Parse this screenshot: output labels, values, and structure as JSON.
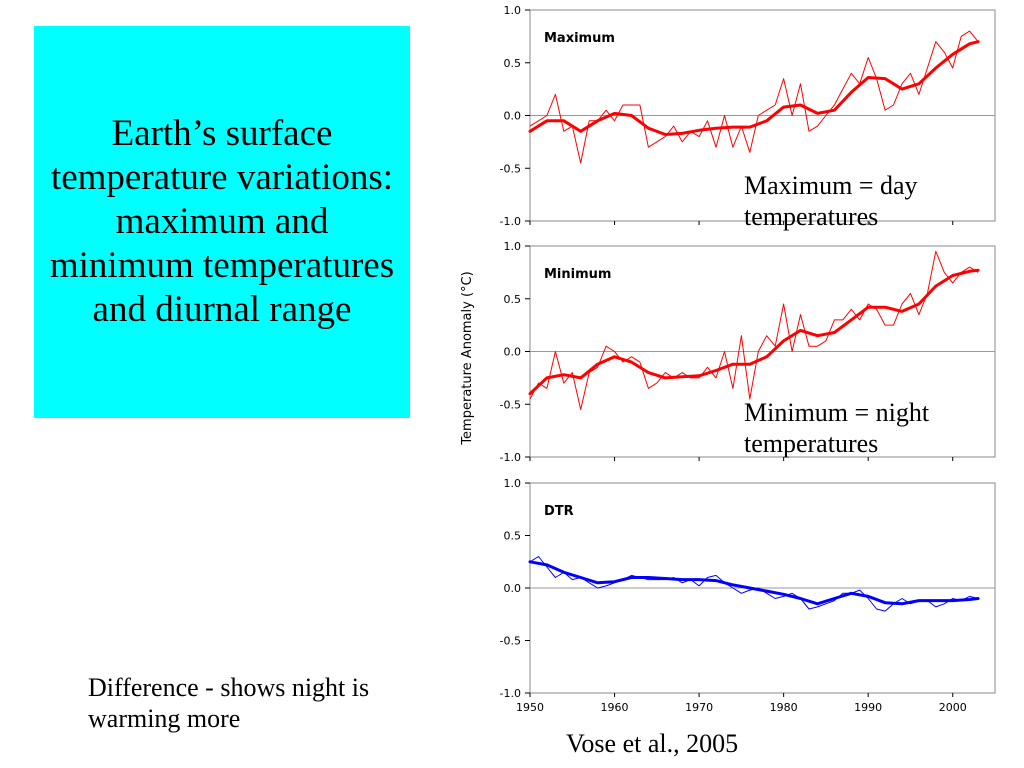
{
  "slide": {
    "title": "Earth’s surface temperature variations: maximum and minimum temperatures and diurnal range",
    "note_max": "Maximum = day temperatures",
    "note_min": "Minimum = night temperatures",
    "note_diff": "Difference - shows night is warming more",
    "citation": "Vose et al., 2005",
    "title_bg": "#00FFFF"
  },
  "chart_data": {
    "type": "line",
    "ylabel": "Temperature Anomaly (°C)",
    "xlim": [
      1950,
      2005
    ],
    "ylim": [
      -1.0,
      1.0
    ],
    "x_ticks": [
      1950,
      1960,
      1970,
      1980,
      1990,
      2000
    ],
    "y_ticks": [
      1.0,
      0.5,
      0.0,
      -0.5,
      -1.0
    ],
    "y_tick_labels": [
      "1.0",
      "0.5",
      "0.0",
      "-0.5",
      "-1.0"
    ],
    "panels": [
      {
        "title": "Maximum",
        "color": "#FF0000",
        "annual": {
          "x": [
            1950,
            1951,
            1952,
            1953,
            1954,
            1955,
            1956,
            1957,
            1958,
            1959,
            1960,
            1961,
            1962,
            1963,
            1964,
            1965,
            1966,
            1967,
            1968,
            1969,
            1970,
            1971,
            1972,
            1973,
            1974,
            1975,
            1976,
            1977,
            1978,
            1979,
            1980,
            1981,
            1982,
            1983,
            1984,
            1985,
            1986,
            1987,
            1988,
            1989,
            1990,
            1991,
            1992,
            1993,
            1994,
            1995,
            1996,
            1997,
            1998,
            1999,
            2000,
            2001,
            2002,
            2003
          ],
          "y": [
            -0.1,
            -0.05,
            0.0,
            0.2,
            -0.15,
            -0.1,
            -0.45,
            -0.05,
            -0.05,
            0.05,
            -0.05,
            0.1,
            0.1,
            0.1,
            -0.3,
            -0.25,
            -0.2,
            -0.1,
            -0.25,
            -0.15,
            -0.2,
            -0.05,
            -0.3,
            0.0,
            -0.3,
            -0.1,
            -0.35,
            0.0,
            0.05,
            0.1,
            0.35,
            0.0,
            0.3,
            -0.15,
            -0.1,
            0.0,
            0.1,
            0.25,
            0.4,
            0.3,
            0.55,
            0.35,
            0.05,
            0.1,
            0.3,
            0.4,
            0.2,
            0.45,
            0.7,
            0.6,
            0.45,
            0.75,
            0.8,
            0.7
          ]
        },
        "smooth": {
          "x": [
            1950,
            1952,
            1954,
            1956,
            1958,
            1960,
            1962,
            1964,
            1966,
            1968,
            1970,
            1972,
            1974,
            1976,
            1978,
            1980,
            1982,
            1984,
            1986,
            1988,
            1990,
            1992,
            1994,
            1996,
            1998,
            2000,
            2002,
            2003
          ],
          "y": [
            -0.15,
            -0.05,
            -0.05,
            -0.15,
            -0.05,
            0.02,
            0.0,
            -0.12,
            -0.18,
            -0.17,
            -0.14,
            -0.12,
            -0.11,
            -0.11,
            -0.05,
            0.08,
            0.1,
            0.02,
            0.05,
            0.22,
            0.36,
            0.35,
            0.25,
            0.3,
            0.45,
            0.58,
            0.68,
            0.7
          ]
        }
      },
      {
        "title": "Minimum",
        "color": "#FF0000",
        "annual": {
          "x": [
            1950,
            1951,
            1952,
            1953,
            1954,
            1955,
            1956,
            1957,
            1958,
            1959,
            1960,
            1961,
            1962,
            1963,
            1964,
            1965,
            1966,
            1967,
            1968,
            1969,
            1970,
            1971,
            1972,
            1973,
            1974,
            1975,
            1976,
            1977,
            1978,
            1979,
            1980,
            1981,
            1982,
            1983,
            1984,
            1985,
            1986,
            1987,
            1988,
            1989,
            1990,
            1991,
            1992,
            1993,
            1994,
            1995,
            1996,
            1997,
            1998,
            1999,
            2000,
            2001,
            2002,
            2003
          ],
          "y": [
            -0.45,
            -0.3,
            -0.35,
            0.0,
            -0.3,
            -0.2,
            -0.55,
            -0.2,
            -0.15,
            0.05,
            0.0,
            -0.1,
            -0.05,
            -0.1,
            -0.35,
            -0.3,
            -0.2,
            -0.25,
            -0.2,
            -0.25,
            -0.25,
            -0.15,
            -0.25,
            0.0,
            -0.35,
            0.15,
            -0.45,
            0.0,
            0.15,
            0.05,
            0.45,
            0.0,
            0.35,
            0.05,
            0.05,
            0.1,
            0.3,
            0.3,
            0.4,
            0.3,
            0.45,
            0.4,
            0.25,
            0.25,
            0.45,
            0.55,
            0.35,
            0.55,
            0.95,
            0.75,
            0.65,
            0.75,
            0.8,
            0.75
          ]
        },
        "smooth": {
          "x": [
            1950,
            1952,
            1954,
            1956,
            1958,
            1960,
            1962,
            1964,
            1966,
            1968,
            1970,
            1972,
            1974,
            1976,
            1978,
            1980,
            1982,
            1984,
            1986,
            1988,
            1990,
            1992,
            1994,
            1996,
            1998,
            2000,
            2002,
            2003
          ],
          "y": [
            -0.4,
            -0.25,
            -0.22,
            -0.25,
            -0.12,
            -0.05,
            -0.1,
            -0.2,
            -0.25,
            -0.24,
            -0.23,
            -0.18,
            -0.12,
            -0.12,
            -0.05,
            0.1,
            0.2,
            0.15,
            0.18,
            0.3,
            0.42,
            0.42,
            0.38,
            0.45,
            0.62,
            0.72,
            0.76,
            0.77
          ]
        }
      },
      {
        "title": "DTR",
        "color": "#0000FF",
        "annual": {
          "x": [
            1950,
            1951,
            1952,
            1953,
            1954,
            1955,
            1956,
            1957,
            1958,
            1959,
            1960,
            1961,
            1962,
            1963,
            1964,
            1965,
            1966,
            1967,
            1968,
            1969,
            1970,
            1971,
            1972,
            1973,
            1974,
            1975,
            1976,
            1977,
            1978,
            1979,
            1980,
            1981,
            1982,
            1983,
            1984,
            1985,
            1986,
            1987,
            1988,
            1989,
            1990,
            1991,
            1992,
            1993,
            1994,
            1995,
            1996,
            1997,
            1998,
            1999,
            2000,
            2001,
            2002,
            2003
          ],
          "y": [
            0.25,
            0.3,
            0.2,
            0.1,
            0.15,
            0.08,
            0.1,
            0.05,
            0.0,
            0.02,
            0.05,
            0.08,
            0.12,
            0.1,
            0.08,
            0.08,
            0.08,
            0.1,
            0.05,
            0.08,
            0.02,
            0.1,
            0.12,
            0.05,
            0.0,
            -0.05,
            -0.02,
            0.0,
            -0.05,
            -0.1,
            -0.08,
            -0.05,
            -0.1,
            -0.2,
            -0.18,
            -0.15,
            -0.12,
            -0.05,
            -0.05,
            -0.02,
            -0.1,
            -0.2,
            -0.22,
            -0.15,
            -0.1,
            -0.15,
            -0.12,
            -0.12,
            -0.18,
            -0.15,
            -0.1,
            -0.12,
            -0.08,
            -0.1
          ]
        },
        "smooth": {
          "x": [
            1950,
            1952,
            1954,
            1956,
            1958,
            1960,
            1962,
            1964,
            1966,
            1968,
            1970,
            1972,
            1974,
            1976,
            1978,
            1980,
            1982,
            1984,
            1986,
            1988,
            1990,
            1992,
            1994,
            1996,
            1998,
            2000,
            2002,
            2003
          ],
          "y": [
            0.25,
            0.22,
            0.15,
            0.1,
            0.05,
            0.06,
            0.1,
            0.1,
            0.09,
            0.08,
            0.08,
            0.07,
            0.03,
            0.0,
            -0.03,
            -0.06,
            -0.1,
            -0.15,
            -0.1,
            -0.05,
            -0.08,
            -0.14,
            -0.15,
            -0.12,
            -0.12,
            -0.12,
            -0.11,
            -0.1
          ]
        }
      }
    ]
  }
}
